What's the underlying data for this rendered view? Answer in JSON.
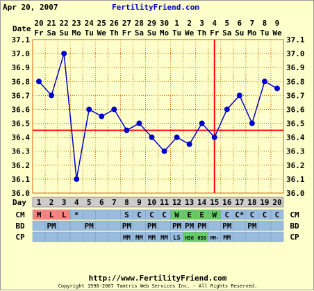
{
  "header": {
    "date": "Apr 20, 2007",
    "site": "FertilityFriend.com"
  },
  "footer": {
    "url": "http://www.FertilityFriend.com",
    "copyright": "Copyright 1998-2007 Tamtris Web Services Inc. - All Rights Reserved."
  },
  "chart_data": {
    "type": "line",
    "dates": [
      "20",
      "21",
      "22",
      "23",
      "24",
      "25",
      "26",
      "27",
      "28",
      "29",
      "30",
      "1",
      "2",
      "3",
      "4",
      "5",
      "6",
      "7",
      "8",
      "9"
    ],
    "weekdays": [
      "Fr",
      "Sa",
      "Su",
      "Mo",
      "Tu",
      "We",
      "Th",
      "Fr",
      "Sa",
      "Su",
      "Mo",
      "Tu",
      "We",
      "Th",
      "Fr",
      "Sa",
      "Su",
      "Mo",
      "Tu",
      "We"
    ],
    "days": [
      "1",
      "2",
      "3",
      "4",
      "5",
      "6",
      "7",
      "8",
      "9",
      "10",
      "11",
      "12",
      "13",
      "14",
      "15",
      "16",
      "17",
      "18",
      "19",
      "20"
    ],
    "values": [
      36.8,
      36.7,
      37.0,
      36.1,
      36.6,
      36.55,
      36.6,
      36.45,
      36.5,
      36.4,
      36.3,
      36.4,
      36.35,
      36.5,
      36.4,
      36.6,
      36.7,
      36.5,
      36.8,
      36.75
    ],
    "ylim": [
      36.0,
      37.1
    ],
    "yticks": [
      "37.1",
      "37.0",
      "36.9",
      "36.8",
      "36.7",
      "36.6",
      "36.5",
      "36.4",
      "36.3",
      "36.2",
      "36.1",
      "36.0"
    ],
    "row_labels": {
      "date": "Date",
      "day": "Day",
      "cm": "CM",
      "bd": "BD",
      "cp": "CP"
    },
    "coverline": 36.45,
    "ovulation_day": 15,
    "cm": [
      "M",
      "L",
      "L",
      "*",
      "",
      "",
      "",
      "S",
      "C",
      "C",
      "C",
      "W",
      "E",
      "E",
      "W",
      "C",
      "C*",
      "C",
      "C",
      "C"
    ],
    "bd": [
      "",
      "PM",
      "",
      "",
      "PM",
      "",
      "",
      "PM",
      "",
      "PM",
      "",
      "PM",
      "PM",
      "PM",
      "",
      "PM",
      "",
      "PM",
      "",
      ""
    ],
    "cp": [
      "",
      "",
      "",
      "",
      "",
      "",
      "",
      "MM",
      "MM",
      "MM",
      "MM",
      "LS",
      "HSO",
      "HSO",
      "MM-",
      "MM",
      "",
      "",
      "",
      ""
    ],
    "colors": {
      "plot_bg": "#ffffcc",
      "line": "#0000cc",
      "grid": "#cc6600",
      "coverline": "#ff0000",
      "row_bg": "#99bbdd",
      "menses": "#ff8080",
      "fertile": "#66cc66",
      "dayrow_bg": "#cccccc"
    }
  }
}
